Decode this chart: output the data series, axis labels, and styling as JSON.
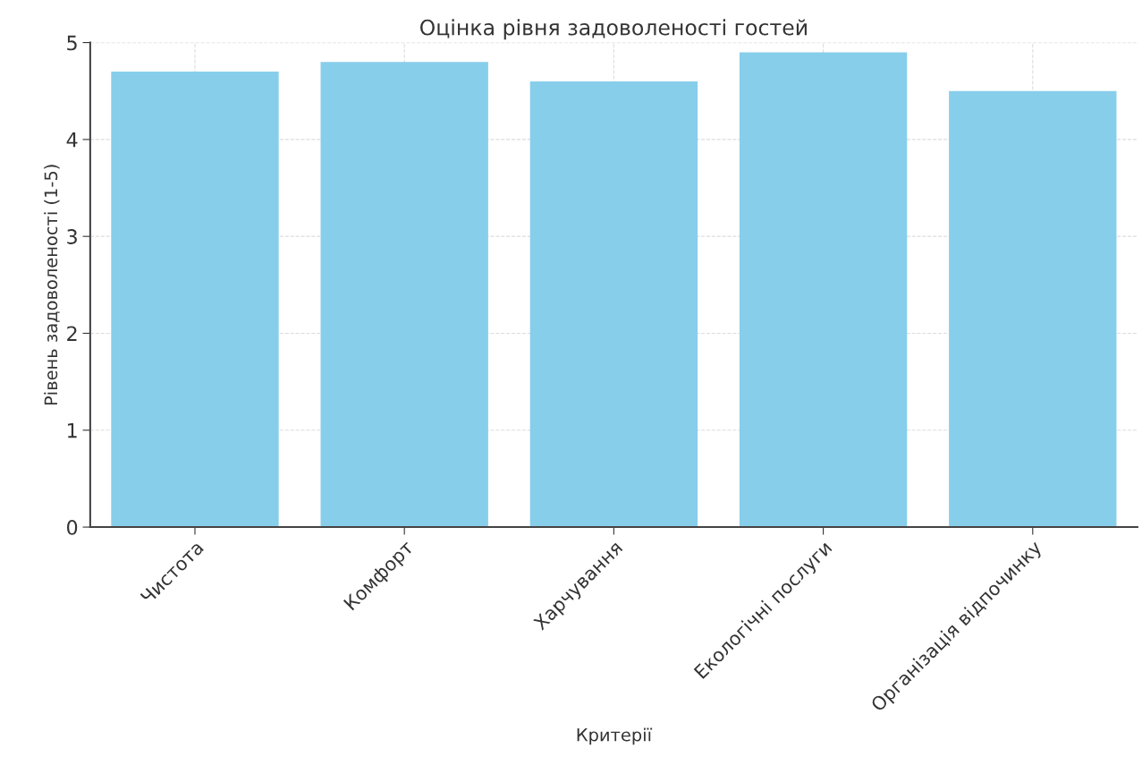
{
  "chart_data": {
    "type": "bar",
    "title": "Оцінка рівня задоволеності гостей",
    "xlabel": "Критерії",
    "ylabel": "Рівень задоволеності (1-5)",
    "categories": [
      "Чистота",
      "Комфорт",
      "Харчування",
      "Екологічні послуги",
      "Організація відпочинку"
    ],
    "values": [
      4.7,
      4.8,
      4.6,
      4.9,
      4.5
    ],
    "color": "#87ceeb",
    "ylim": [
      0,
      5
    ],
    "yticks": [
      0,
      1,
      2,
      3,
      4,
      5
    ],
    "grid": true
  }
}
